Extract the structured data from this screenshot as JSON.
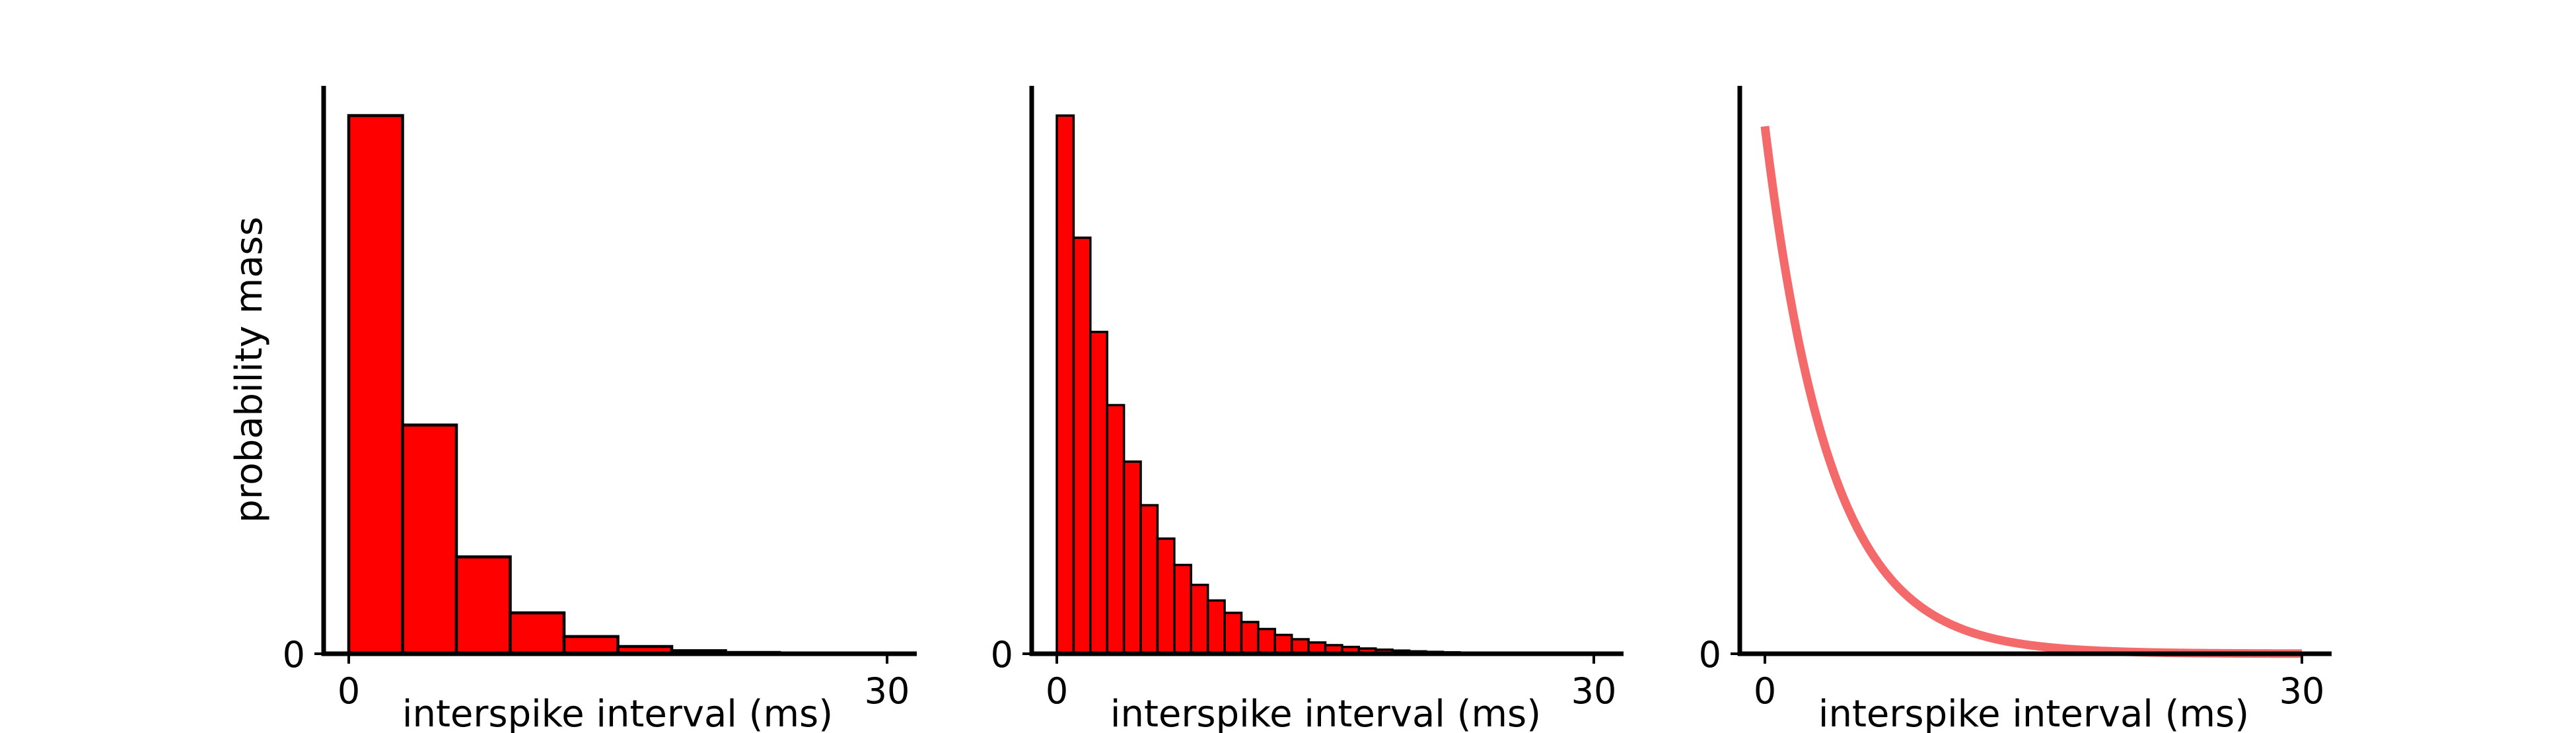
{
  "chart_data": [
    {
      "type": "bar",
      "panel": "coarse-histogram",
      "xlabel": "interspike interval (ms)",
      "ylabel": "probability mass",
      "xticks": [
        "0",
        "30"
      ],
      "yticks": [
        "0"
      ],
      "xlim": [
        -1.5,
        31.5
      ],
      "ylim": [
        0,
        1
      ],
      "bin_edges": [
        0,
        3,
        6,
        9,
        12,
        15,
        18,
        21,
        24,
        27,
        30
      ],
      "values": [
        1.0,
        0.425,
        0.18,
        0.076,
        0.032,
        0.0135,
        0.0057,
        0.0024,
        0.001,
        0.0004
      ],
      "bar_color": "#ff0000",
      "edge_color": "#000000"
    },
    {
      "type": "bar",
      "panel": "fine-histogram",
      "xlabel": "interspike interval (ms)",
      "ylabel": "",
      "xticks": [
        "0",
        "30"
      ],
      "yticks": [
        "0"
      ],
      "xlim": [
        -1.5,
        31.5
      ],
      "ylim": [
        0,
        1
      ],
      "bin_edges": [
        0,
        0.9375,
        1.875,
        2.8125,
        3.75,
        4.6875,
        5.625,
        6.5625,
        7.5,
        8.4375,
        9.375,
        10.3125,
        11.25,
        12.1875,
        13.125,
        14.0625,
        15.0,
        15.9375,
        16.875,
        17.8125,
        18.75,
        19.6875,
        20.625,
        21.5625,
        22.5,
        23.4375,
        24.375,
        25.3125,
        26.25,
        27.1875,
        28.125,
        29.0625,
        30.0
      ],
      "values": [
        1.0,
        0.773,
        0.598,
        0.462,
        0.357,
        0.276,
        0.214,
        0.165,
        0.128,
        0.099,
        0.076,
        0.059,
        0.046,
        0.035,
        0.027,
        0.021,
        0.016,
        0.0127,
        0.0098,
        0.0076,
        0.0059,
        0.0045,
        0.0035,
        0.0027,
        0.0021,
        0.0016,
        0.0013,
        0.001,
        0.0008,
        0.0006,
        0.0004,
        0.0003
      ],
      "bar_color": "#ff0000",
      "edge_color": "#000000"
    },
    {
      "type": "line",
      "panel": "continuous-density",
      "xlabel": "interspike interval (ms)",
      "ylabel": "",
      "xticks": [
        "0",
        "30"
      ],
      "yticks": [
        "0"
      ],
      "xlim": [
        -1.5,
        31.5
      ],
      "ylim": [
        0,
        1
      ],
      "curve": "exponential",
      "x_range": [
        0,
        30
      ],
      "y_at_zero": 0.98,
      "decay_constant_ms": 3.6,
      "line_color": "#f46a6a"
    }
  ]
}
